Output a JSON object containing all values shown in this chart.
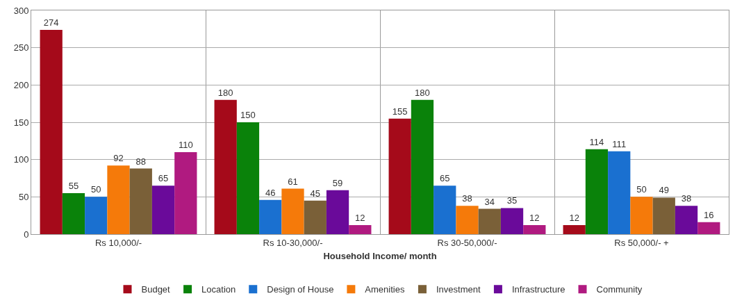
{
  "chart_data": {
    "type": "bar",
    "xlabel": "Household Income/ month",
    "categories": [
      "Rs 10,000/-",
      "Rs 10-30,000/-",
      "Rs 30-50,000/-",
      "Rs 50,000/- +"
    ],
    "series": [
      {
        "name": "Budget",
        "color": "#a50a1a",
        "values": [
          274,
          180,
          155,
          12
        ]
      },
      {
        "name": "Location",
        "color": "#0a820a",
        "values": [
          55,
          150,
          180,
          114
        ]
      },
      {
        "name": "Design of House",
        "color": "#1a70d0",
        "values": [
          50,
          46,
          65,
          111
        ]
      },
      {
        "name": "Amenities",
        "color": "#f57a0a",
        "values": [
          92,
          61,
          38,
          50
        ]
      },
      {
        "name": "Investment",
        "color": "#7a6038",
        "values": [
          88,
          45,
          34,
          49
        ]
      },
      {
        "name": "Infrastructure",
        "color": "#6a0a9a",
        "values": [
          65,
          59,
          35,
          38
        ]
      },
      {
        "name": "Community",
        "color": "#b01a80",
        "values": [
          110,
          12,
          12,
          16
        ]
      }
    ],
    "ylim": [
      0,
      300
    ],
    "yticks": [
      0,
      50,
      100,
      150,
      200,
      250,
      300
    ],
    "grid": true,
    "legend": "bottom",
    "data_labels": true
  }
}
